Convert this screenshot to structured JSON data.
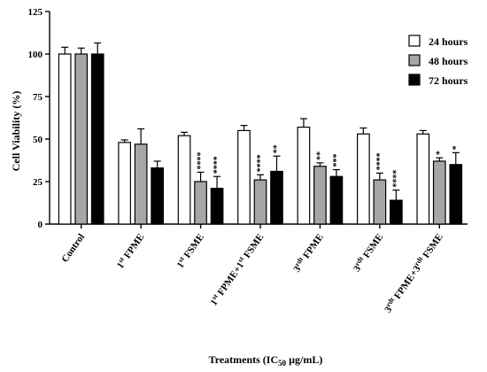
{
  "chart_data": {
    "type": "bar",
    "ylabel": "Cell Viability (%)",
    "xlabel": "Treatments (IC50 µg/mL)",
    "ylim": [
      0,
      125
    ],
    "yticks": [
      0,
      25,
      50,
      75,
      100,
      125
    ],
    "categories": [
      {
        "main": "Control",
        "ord": "",
        "tail": ""
      },
      {
        "main": "1",
        "ord": "st",
        "tail": " FPME"
      },
      {
        "main": "1",
        "ord": "st",
        "tail": " FSME"
      },
      {
        "main": "1",
        "ord": "st",
        "tail": " FPME+1",
        "ord2": "st",
        "tail2": " FSME"
      },
      {
        "main": "3",
        "ord": "rdt",
        "tail": " FPME"
      },
      {
        "main": "3",
        "ord": "rdt",
        "tail": " FSME"
      },
      {
        "main": "3",
        "ord": "rdt",
        "tail": " FPME+3",
        "ord2": "rdt",
        "tail2": " FSME"
      }
    ],
    "legend_position": "top-right",
    "series": [
      {
        "name": "24 hours",
        "color": "#ffffff",
        "values": [
          100,
          48,
          52,
          55,
          57,
          53,
          53
        ],
        "errors": [
          4,
          1.5,
          2,
          3,
          5,
          3.5,
          2
        ],
        "sig": [
          "",
          "",
          "",
          "",
          "",
          "",
          ""
        ]
      },
      {
        "name": "48 hours",
        "color": "#a6a6a6",
        "values": [
          100,
          47,
          25,
          26,
          34,
          26,
          37
        ],
        "errors": [
          3.5,
          9,
          5.5,
          3,
          2,
          4,
          2
        ],
        "sig": [
          "",
          "",
          "****",
          "****",
          "**",
          "****",
          "*"
        ]
      },
      {
        "name": "72 hours",
        "color": "#000000",
        "values": [
          100,
          33,
          21,
          31,
          28,
          14,
          35
        ],
        "errors": [
          6.5,
          4,
          7,
          9,
          4,
          6,
          7
        ],
        "sig": [
          "",
          "",
          "****",
          "**",
          "***",
          "****",
          "*"
        ]
      }
    ]
  }
}
